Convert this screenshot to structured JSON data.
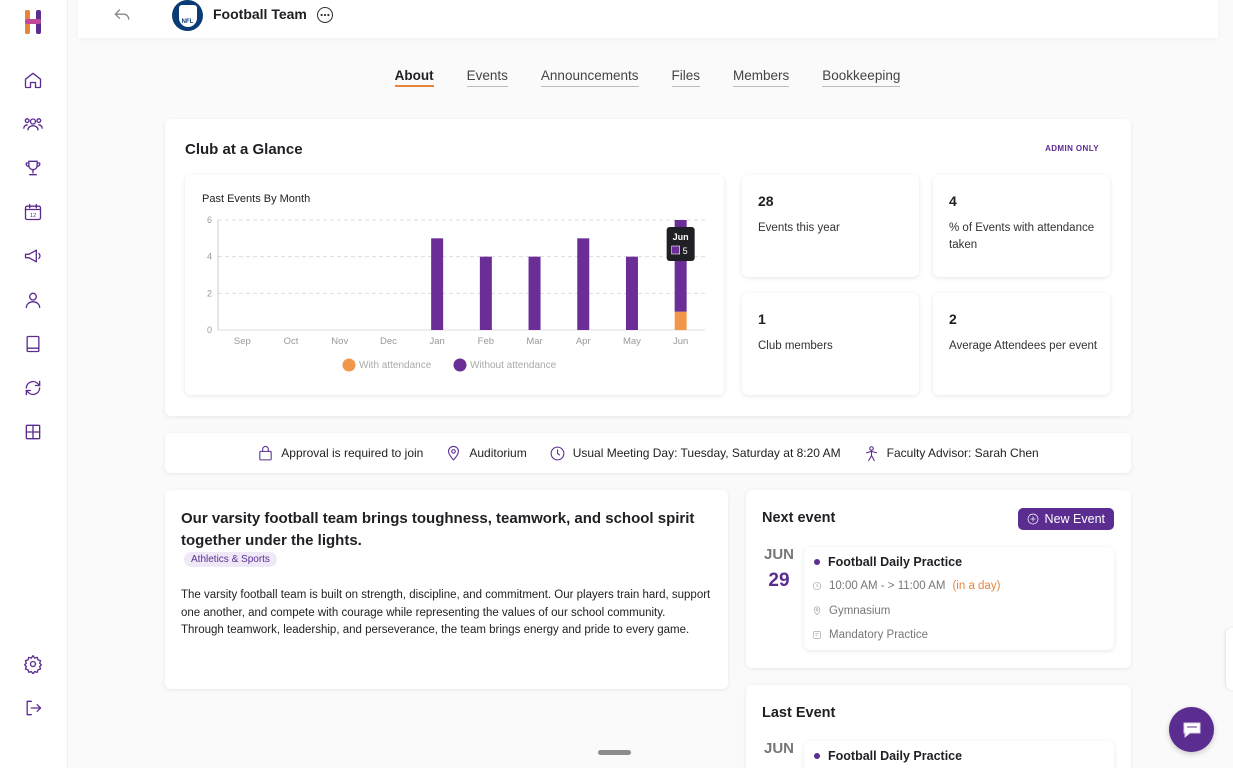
{
  "header": {
    "title": "Football Team",
    "avatar_text": "NFL"
  },
  "tabs": [
    "About",
    "Events",
    "Announcements",
    "Files",
    "Members",
    "Bookkeeping"
  ],
  "glance": {
    "title": "Club at a Glance",
    "admin_label": "ADMIN ONLY",
    "stats": [
      {
        "value": "28",
        "label": "Events this year"
      },
      {
        "value": "4",
        "label": "% of Events with attendance taken"
      },
      {
        "value": "1",
        "label": "Club members"
      },
      {
        "value": "2",
        "label": "Average Attendees per event"
      }
    ]
  },
  "chart_data": {
    "type": "bar",
    "title": "Past Events By Month",
    "categories": [
      "Sep",
      "Oct",
      "Nov",
      "Dec",
      "Jan",
      "Feb",
      "Mar",
      "Apr",
      "May",
      "Jun"
    ],
    "series": [
      {
        "name": "With attendance",
        "color": "#f0974a",
        "values": [
          0,
          0,
          0,
          0,
          0,
          0,
          0,
          0,
          0,
          1
        ]
      },
      {
        "name": "Without attendance",
        "color": "#6a2e96",
        "values": [
          0,
          0,
          0,
          0,
          5,
          4,
          4,
          5,
          4,
          5
        ]
      }
    ],
    "stacked": true,
    "ylim": [
      0,
      6
    ],
    "yticks": [
      0,
      2,
      4,
      6
    ],
    "grid": true,
    "legend": "bottom",
    "tooltip": {
      "label": "Jun",
      "value": "5"
    }
  },
  "info": {
    "approval": "Approval is required to join",
    "location": "Auditorium",
    "meeting": "Usual Meeting Day: Tuesday, Saturday at 8:20 AM",
    "advisor": "Faculty Advisor: Sarah Chen"
  },
  "about": {
    "headline": "Our varsity football team brings toughness, teamwork, and school spirit together under the lights.",
    "tag": "Athletics & Sports",
    "body": "The varsity football team is built on strength, discipline, and commitment. Our players train hard, support one another, and compete with courage while representing the values of our school community. Through teamwork, leadership, and perseverance, the team brings energy and pride to every game."
  },
  "next_event": {
    "title": "Next event",
    "button": "New Event",
    "month": "JUN",
    "day": "29",
    "name": "Football Daily Practice",
    "time": "10:00 AM - > 11:00 AM",
    "relative": "(in a day)",
    "location": "Gymnasium",
    "type": "Mandatory Practice"
  },
  "last_event": {
    "title": "Last Event",
    "month": "JUN",
    "name": "Football Daily Practice"
  },
  "colors": {
    "brand": "#5b2d90",
    "accent": "#e8833a"
  }
}
